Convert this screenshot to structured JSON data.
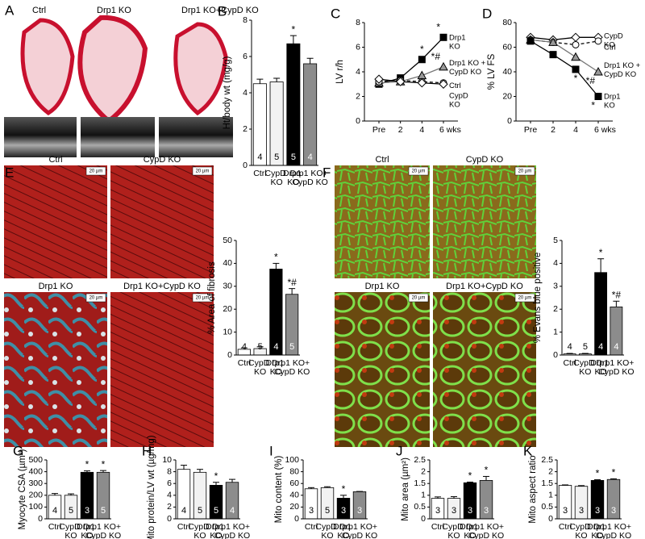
{
  "figure": {
    "A": {
      "letter": "A",
      "labels": [
        "Ctrl",
        "Drp1 KO",
        "Drp1 KO+CypD KO"
      ]
    },
    "E": {
      "letter": "E",
      "labels": [
        "Ctrl",
        "CypD KO",
        "Drp1 KO",
        "Drp1 KO+CypD KO"
      ],
      "scale_bar": "20 µm"
    },
    "F": {
      "letter": "F",
      "labels": [
        "Ctrl",
        "CypD KO",
        "Drp1 KO",
        "Drp1 KO+CypD KO"
      ],
      "scale_bar": "20 µm"
    }
  },
  "chart_data": [
    {
      "type": "bar",
      "panel": "B",
      "y_label": "Ht/body wt (mg/g)",
      "categories": [
        "Ctrl",
        "CypD KO",
        "Drp1 KO",
        "Drp1 KO+ CypD KO"
      ],
      "values": [
        4.5,
        4.6,
        6.7,
        5.6
      ],
      "errors": [
        0.25,
        0.2,
        0.45,
        0.3
      ],
      "n": [
        4,
        5,
        5,
        4
      ],
      "markers": [
        null,
        null,
        "*",
        null
      ],
      "colors": [
        "#ffffff",
        "#f2f2f2",
        "#000000",
        "#8c8c8c"
      ],
      "ylim": [
        0,
        8
      ],
      "yticks": [
        0,
        2,
        4,
        6,
        8
      ]
    },
    {
      "type": "line",
      "panel": "C",
      "y_label": "LV r/h",
      "categories": [
        "Pre",
        "2",
        "4",
        "6 wks"
      ],
      "ylim": [
        0,
        8
      ],
      "yticks": [
        0,
        2,
        4,
        6,
        8
      ],
      "series": [
        {
          "name": "Drp1 KO",
          "color": "#000000",
          "line_color": "#000000",
          "marker": "square",
          "values": [
            3.0,
            3.5,
            5.0,
            6.8
          ],
          "markers": [
            null,
            null,
            "*",
            "*"
          ]
        },
        {
          "name": "Drp1 KO + CypD KO",
          "color": "#999999",
          "line_color": "#777777",
          "marker": "triangle",
          "values": [
            3.1,
            3.2,
            3.7,
            4.4
          ],
          "markers": [
            null,
            null,
            null,
            "*#"
          ]
        },
        {
          "name": "Ctrl",
          "color": "#ffffff",
          "line_color": "#000000",
          "marker": "circle",
          "dash": true,
          "values": [
            3.2,
            3.3,
            3.2,
            3.1
          ]
        },
        {
          "name": "CypD KO",
          "color": "#ffffff",
          "line_color": "#000000",
          "marker": "diamond",
          "values": [
            3.4,
            3.2,
            3.1,
            3.0
          ]
        }
      ]
    },
    {
      "type": "line",
      "panel": "D",
      "y_label": "% LV FS",
      "categories": [
        "Pre",
        "2",
        "4",
        "6 wks"
      ],
      "ylim": [
        0,
        80
      ],
      "yticks": [
        0,
        20,
        40,
        60,
        80
      ],
      "series": [
        {
          "name": "CypD KO",
          "color": "#ffffff",
          "line_color": "#000000",
          "marker": "diamond",
          "values": [
            68,
            66,
            68,
            68
          ]
        },
        {
          "name": "Ctrl",
          "color": "#ffffff",
          "line_color": "#000000",
          "marker": "circle",
          "dash": true,
          "values": [
            66,
            64,
            62,
            65
          ]
        },
        {
          "name": "Drp1 KO + CypD KO",
          "color": "#999999",
          "line_color": "#777777",
          "marker": "triangle",
          "values": [
            66,
            64,
            52,
            40
          ],
          "markers": [
            null,
            null,
            null,
            "*#"
          ]
        },
        {
          "name": "Drp1 KO",
          "color": "#000000",
          "line_color": "#000000",
          "marker": "square",
          "values": [
            65,
            54,
            42,
            20
          ],
          "markers": [
            null,
            null,
            "*",
            "*"
          ]
        }
      ]
    },
    {
      "type": "bar",
      "y_label": "% Area of fibrosis",
      "categories": [
        "Ctrl",
        "CypD KO",
        "Drp1 KO",
        "Drp1 KO+ CypD KO"
      ],
      "values": [
        2.5,
        2.8,
        37.5,
        26.5
      ],
      "errors": [
        0.6,
        0.8,
        2.5,
        2.5
      ],
      "n": [
        4,
        5,
        4,
        5
      ],
      "markers": [
        null,
        null,
        "*",
        "*#"
      ],
      "colors": [
        "#ffffff",
        "#f2f2f2",
        "#000000",
        "#8c8c8c"
      ],
      "ylim": [
        0,
        50
      ],
      "yticks": [
        0,
        10,
        20,
        30,
        40,
        50
      ]
    },
    {
      "type": "bar",
      "y_label": "% Evans blue positive",
      "categories": [
        "Ctrl",
        "CypD KO",
        "Drp1 KO",
        "Drp1 KO+ CypD KO"
      ],
      "values": [
        0.05,
        0.05,
        3.6,
        2.1
      ],
      "errors": [
        0.02,
        0.02,
        0.6,
        0.25
      ],
      "n": [
        4,
        5,
        4,
        4
      ],
      "markers": [
        null,
        null,
        "*",
        "*#"
      ],
      "colors": [
        "#ffffff",
        "#f2f2f2",
        "#000000",
        "#8c8c8c"
      ],
      "ylim": [
        0,
        5
      ],
      "yticks": [
        0,
        1,
        2,
        3,
        4,
        5
      ]
    },
    {
      "type": "bar",
      "panel": "G",
      "y_label": "Myocyte CSA (µm²)",
      "categories": [
        "Ctrl",
        "CypD KO",
        "Drp1 KO",
        "Drp1 KO+ CypD KO"
      ],
      "values": [
        200,
        200,
        395,
        395
      ],
      "errors": [
        15,
        12,
        12,
        15
      ],
      "n": [
        4,
        5,
        3,
        5
      ],
      "markers": [
        null,
        null,
        "*",
        "*"
      ],
      "colors": [
        "#ffffff",
        "#f2f2f2",
        "#000000",
        "#8c8c8c"
      ],
      "ylim": [
        0,
        500
      ],
      "yticks": [
        0,
        100,
        200,
        300,
        400,
        500
      ]
    },
    {
      "type": "bar",
      "panel": "H",
      "y_label": "Mito protein/LV wt (µg/mg)",
      "categories": [
        "Ctrl",
        "CypD KO",
        "Drp1 KO",
        "Drp1 KO+ CypD KO"
      ],
      "values": [
        8.4,
        7.9,
        5.7,
        6.2
      ],
      "errors": [
        0.7,
        0.5,
        0.5,
        0.5
      ],
      "n": [
        4,
        5,
        5,
        4
      ],
      "markers": [
        null,
        null,
        "*",
        null
      ],
      "colors": [
        "#ffffff",
        "#f2f2f2",
        "#000000",
        "#8c8c8c"
      ],
      "ylim": [
        0,
        10
      ],
      "yticks": [
        0,
        2,
        4,
        6,
        8,
        10
      ]
    },
    {
      "type": "bar",
      "panel": "I",
      "y_label": "Mito content (%)",
      "categories": [
        "Ctrl",
        "CypD KO",
        "Drp1 KO",
        "Drp1 KO+ CypD KO"
      ],
      "values": [
        51,
        53,
        35,
        46
      ],
      "errors": [
        2,
        1.5,
        5,
        0.5
      ],
      "n": [
        3,
        5,
        3,
        3
      ],
      "markers": [
        null,
        null,
        "*",
        null
      ],
      "colors": [
        "#ffffff",
        "#f2f2f2",
        "#000000",
        "#8c8c8c"
      ],
      "ylim": [
        0,
        100
      ],
      "yticks": [
        0,
        20,
        40,
        60,
        80,
        100
      ]
    },
    {
      "type": "bar",
      "panel": "J",
      "y_label": "Mito area (µm²)",
      "categories": [
        "Ctrl",
        "CypD KO",
        "Drp1 KO",
        "Drp1 KO+ CypD KO"
      ],
      "values": [
        0.87,
        0.87,
        1.53,
        1.63
      ],
      "errors": [
        0.06,
        0.07,
        0.03,
        0.17
      ],
      "n": [
        3,
        3,
        3,
        3
      ],
      "markers": [
        null,
        null,
        "*",
        "*"
      ],
      "colors": [
        "#ffffff",
        "#f2f2f2",
        "#000000",
        "#8c8c8c"
      ],
      "ylim": [
        0,
        2.5
      ],
      "yticks": [
        0,
        0.5,
        1,
        1.5,
        2,
        2.5
      ]
    },
    {
      "type": "bar",
      "panel": "K",
      "y_label": "Mito aspect ratio",
      "categories": [
        "Ctrl",
        "CypD KO",
        "Drp1 KO",
        "Drp1 KO+ CypD KO"
      ],
      "values": [
        1.42,
        1.38,
        1.63,
        1.67
      ],
      "errors": [
        0.02,
        0.03,
        0.03,
        0.03
      ],
      "n": [
        3,
        3,
        3,
        3
      ],
      "markers": [
        null,
        null,
        "*",
        "*"
      ],
      "colors": [
        "#ffffff",
        "#f2f2f2",
        "#000000",
        "#8c8c8c"
      ],
      "ylim": [
        0,
        2.5
      ],
      "yticks": [
        0,
        0.5,
        1,
        1.5,
        2,
        2.5
      ]
    }
  ]
}
